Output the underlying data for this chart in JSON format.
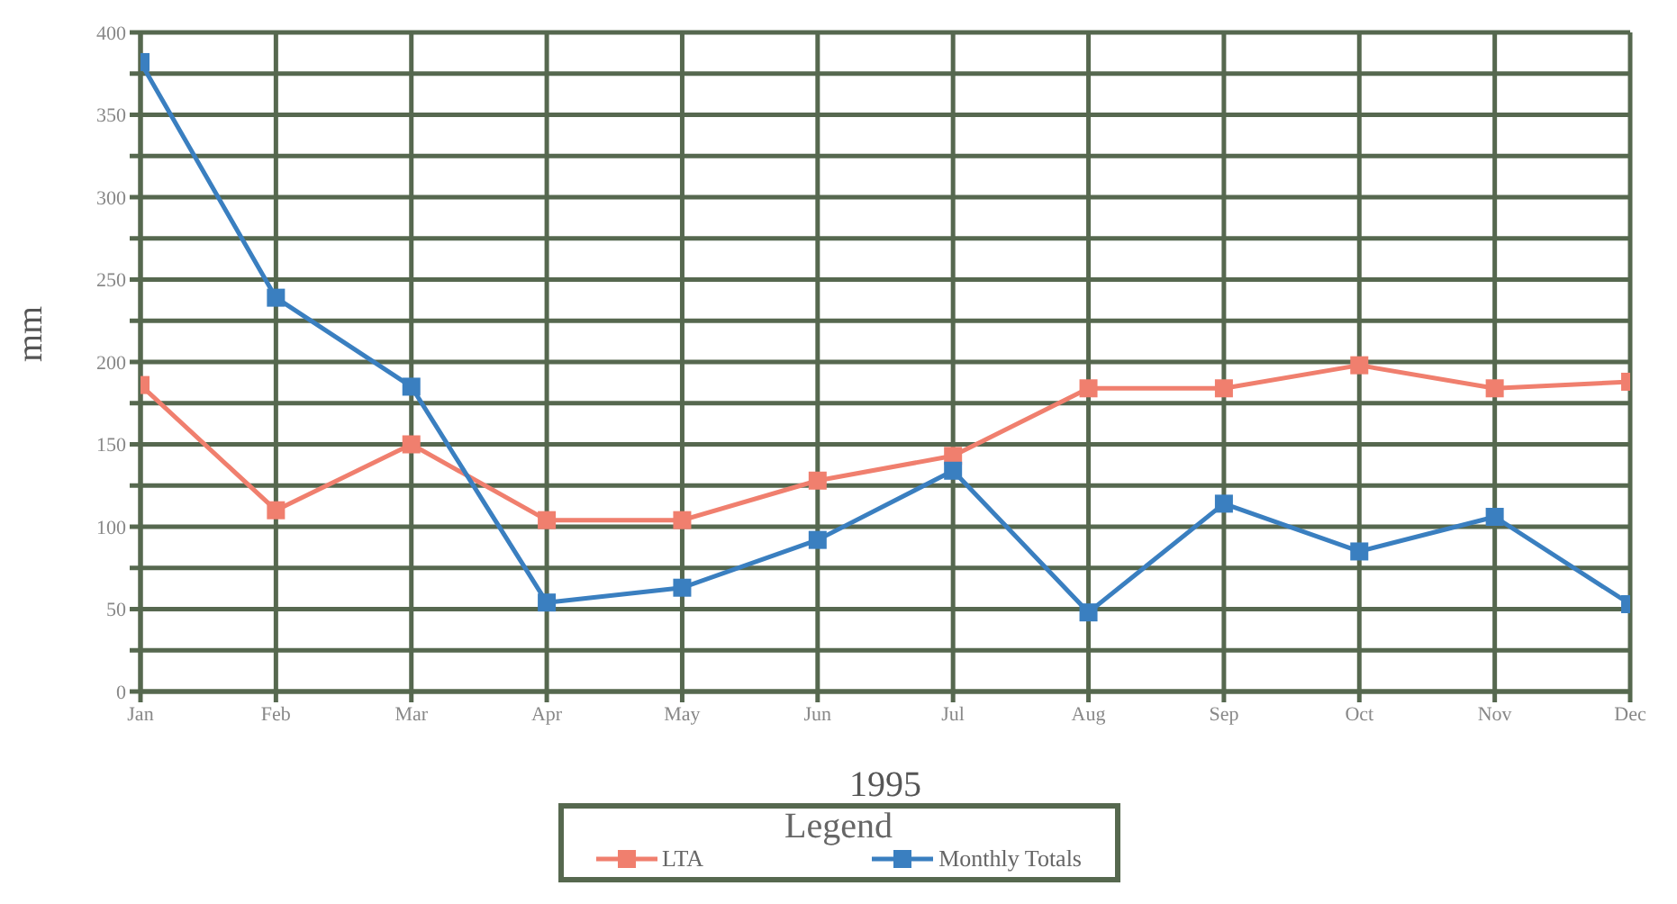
{
  "chart_data": {
    "type": "line",
    "xlabel": "1995",
    "ylabel": "mm",
    "legend_title": "Legend",
    "categories": [
      "Jan",
      "Feb",
      "Mar",
      "Apr",
      "May",
      "Jun",
      "Jul",
      "Aug",
      "Sep",
      "Oct",
      "Nov",
      "Dec"
    ],
    "series": [
      {
        "name": "LTA",
        "color": "#f07f6e",
        "values": [
          186,
          110,
          150,
          104,
          104,
          128,
          143,
          184,
          184,
          198,
          184,
          188
        ]
      },
      {
        "name": "Monthly Totals",
        "color": "#3a7fc0",
        "values": [
          382,
          239,
          185,
          54,
          63,
          92,
          134,
          48,
          114,
          85,
          106,
          53
        ]
      }
    ],
    "ylim": [
      0,
      400
    ],
    "yticks": [
      0,
      {
        "value": 25,
        "label": null
      },
      50,
      {
        "value": 75,
        "label": null
      },
      100,
      {
        "value": 125,
        "label": null
      },
      150,
      {
        "value": 175,
        "label": null
      },
      200,
      {
        "value": 225,
        "label": null
      },
      250,
      {
        "value": 275,
        "label": null
      },
      300,
      {
        "value": 325,
        "label": null
      },
      350,
      {
        "value": 375,
        "label": null
      },
      400
    ],
    "grid": true,
    "legend": "bottom",
    "marker": "square",
    "line_style": "solid"
  }
}
